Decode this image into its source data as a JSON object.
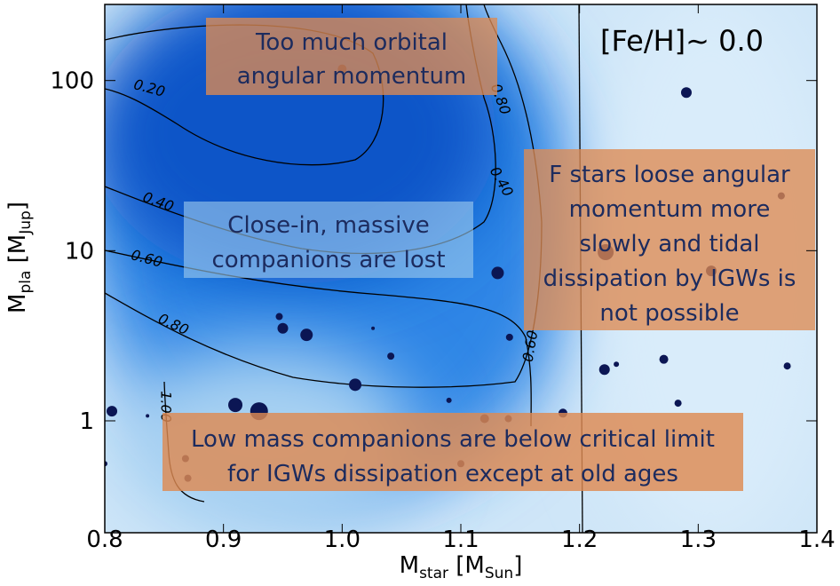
{
  "chart_data": {
    "type": "scatter",
    "x_label": [
      "M",
      "star",
      " [M",
      "Sun",
      "]"
    ],
    "y_label": [
      "M",
      "pla",
      " [M",
      "Jup",
      "]"
    ],
    "xlim": [
      0.8,
      1.4
    ],
    "xticks": [
      0.8,
      0.9,
      {
        "value": 1,
        "label": "1.0"
      },
      1.1,
      1.2,
      1.3,
      1.4
    ],
    "ylim": [
      0.22,
      280
    ],
    "log_y": true,
    "yticks": [
      1,
      10,
      100
    ],
    "color": "#0b1654",
    "x": [
      1.29,
      1.0,
      1.37,
      1.222,
      1.311,
      1.131,
      0.947,
      0.95,
      0.97,
      1.026,
      1.141,
      1.041,
      1.221,
      1.231,
      1.271,
      1.375,
      1.011,
      1.09,
      0.91,
      0.93,
      0.806,
      0.836,
      1.186,
      1.283,
      0.8,
      0.868,
      0.87,
      1.12,
      1.14,
      1.1
    ],
    "y": [
      85,
      117,
      21,
      9.8,
      7.6,
      7.4,
      4.1,
      3.5,
      3.2,
      3.5,
      3.1,
      2.4,
      2.0,
      2.15,
      2.3,
      2.1,
      1.63,
      1.32,
      1.24,
      1.14,
      1.14,
      1.07,
      1.11,
      1.27,
      0.56,
      0.6,
      0.46,
      1.03,
      1.03,
      0.56
    ],
    "sizes": [
      6,
      5,
      4,
      9,
      6,
      7,
      4,
      6,
      7,
      2,
      4,
      4,
      6,
      3,
      5,
      4,
      7,
      3,
      8,
      10,
      6,
      2,
      5,
      4,
      3,
      4,
      4,
      5,
      4,
      4
    ],
    "contours": [
      {
        "value": 0.2,
        "label": "0.20"
      },
      {
        "value": 0.4,
        "label": "0.40"
      },
      {
        "value": 0.6,
        "label": "0.60"
      },
      {
        "value": 0.8,
        "label": "0.80"
      },
      {
        "value": 1,
        "label": "1.00"
      }
    ],
    "annotations": [
      {
        "lines": [
          "Too much orbital",
          "angular momentum"
        ]
      },
      {
        "lines": [
          "[Fe/H]~ 0.0"
        ]
      },
      {
        "lines": [
          "Close-in, massive",
          "companions are lost"
        ]
      },
      {
        "lines": [
          "F stars loose angular",
          "momentum more",
          "slowly and tidal",
          "dissipation by IGWs is",
          "not possible"
        ]
      },
      {
        "lines": [
          "Low mass companions are below critical limit",
          "for IGWs dissipation except at old ages"
        ]
      }
    ]
  }
}
